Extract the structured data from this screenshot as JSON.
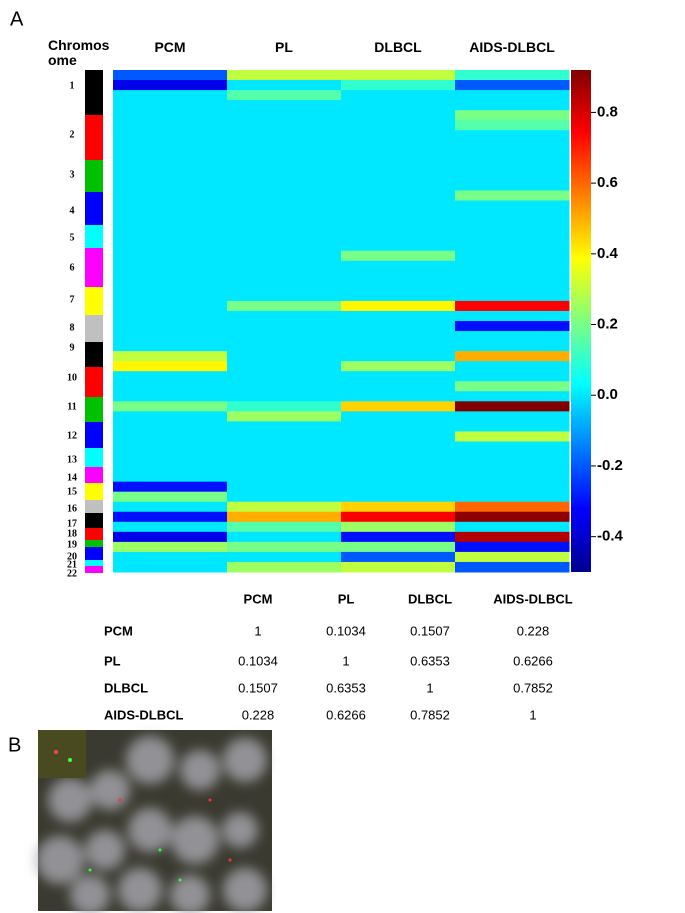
{
  "panel_labels": {
    "a": "A",
    "b": "B"
  },
  "chromosome_header": "Chromosome",
  "chromosomes": [
    {
      "label": "1",
      "color": "#000000"
    },
    {
      "label": "2",
      "color": "#ff0000"
    },
    {
      "label": "3",
      "color": "#00c000"
    },
    {
      "label": "4",
      "color": "#0000ff"
    },
    {
      "label": "5",
      "color": "#00ffff"
    },
    {
      "label": "6",
      "color": "#ff00ff"
    },
    {
      "label": "7",
      "color": "#ffff00"
    },
    {
      "label": "8",
      "color": "#c0c0c0"
    },
    {
      "label": "9",
      "color": "#000000"
    },
    {
      "label": "10",
      "color": "#ff0000"
    },
    {
      "label": "11",
      "color": "#00c000"
    },
    {
      "label": "12",
      "color": "#0000ff"
    },
    {
      "label": "13",
      "color": "#00ffff"
    },
    {
      "label": "14",
      "color": "#ff00ff"
    },
    {
      "label": "15",
      "color": "#ffff00"
    },
    {
      "label": "16",
      "color": "#c0c0c0"
    },
    {
      "label": "17",
      "color": "#000000"
    },
    {
      "label": "18",
      "color": "#ff0000"
    },
    {
      "label": "19",
      "color": "#00c000"
    },
    {
      "label": "20",
      "color": "#0000ff"
    },
    {
      "label": "21",
      "color": "#00ffff"
    },
    {
      "label": "22",
      "color": "#ff00ff"
    }
  ],
  "chart_data": {
    "type": "heatmap",
    "colormap": "jet",
    "ylim": [
      -0.5,
      0.92
    ],
    "yticks": [
      {
        "value": -0.4,
        "label": "-0.4"
      },
      {
        "value": -0.2,
        "label": "-0.2"
      },
      {
        "value": 0,
        "label": "0.0"
      },
      0.2,
      0.4,
      0.6,
      0.8
    ],
    "series": [
      {
        "name": "PCM",
        "values": [
          -0.2,
          -0.35,
          0,
          0,
          0,
          0,
          0,
          0,
          0,
          0,
          0,
          0,
          0,
          0,
          0,
          0,
          0,
          0,
          0,
          0,
          0,
          0,
          0,
          0,
          0,
          0,
          0,
          0,
          0.3,
          0.4,
          0,
          0,
          0,
          0.2,
          0,
          0,
          0,
          0,
          0,
          0,
          0,
          -0.3,
          0.2,
          0,
          -0.3,
          0,
          -0.35,
          0.25,
          0,
          0
        ]
      },
      {
        "name": "PL",
        "values": [
          0.3,
          0,
          0.15,
          0,
          0,
          0,
          0,
          0,
          0,
          0,
          0,
          0,
          0,
          0,
          0,
          0,
          0,
          0,
          0,
          0,
          0,
          0,
          0,
          0.2,
          0,
          0,
          0,
          0,
          0,
          0,
          0,
          0,
          0,
          0.1,
          0.25,
          0,
          0,
          0,
          0,
          0,
          0,
          0,
          0,
          0.3,
          0.5,
          0.15,
          0,
          0.2,
          0,
          0.25
        ]
      },
      {
        "name": "DLBCL",
        "values": [
          0.3,
          0.1,
          0,
          0,
          0,
          0,
          0,
          0,
          0,
          0,
          0,
          0,
          0,
          0,
          0,
          0,
          0,
          0,
          0.2,
          0,
          0,
          0,
          0,
          0.4,
          0,
          0,
          0,
          0,
          0,
          0.25,
          0,
          0,
          0,
          0.45,
          0,
          0,
          0,
          0,
          0,
          0,
          0,
          0,
          0,
          0.45,
          0.75,
          0.25,
          -0.3,
          0.2,
          -0.2,
          0.3
        ]
      },
      {
        "name": "AIDS-DLBCL",
        "values": [
          0.1,
          -0.2,
          0,
          0,
          0.2,
          0.15,
          0,
          0,
          0,
          0,
          0,
          0,
          0.2,
          0,
          0,
          0,
          0,
          0,
          0,
          0,
          0,
          0,
          0,
          0.75,
          0,
          -0.3,
          0,
          0,
          0.5,
          0,
          0,
          0.2,
          0,
          0.92,
          0,
          0,
          0.3,
          0,
          0,
          0,
          0,
          0,
          0,
          0.6,
          0.9,
          0,
          0.85,
          -0.3,
          0.3,
          -0.2
        ]
      }
    ]
  },
  "table": {
    "header": [
      "PCM",
      "PL",
      "DLBCL",
      "AIDS-DLBCL"
    ],
    "rows": [
      [
        "PCM",
        1,
        0.1034,
        0.1507,
        0.228
      ],
      [
        "PL",
        0.1034,
        1,
        0.6353,
        0.6266
      ],
      [
        "DLBCL",
        0.1507,
        0.6353,
        1,
        0.7852
      ],
      [
        "AIDS-DLBCL",
        0.228,
        0.6266,
        0.7852,
        1
      ]
    ]
  }
}
